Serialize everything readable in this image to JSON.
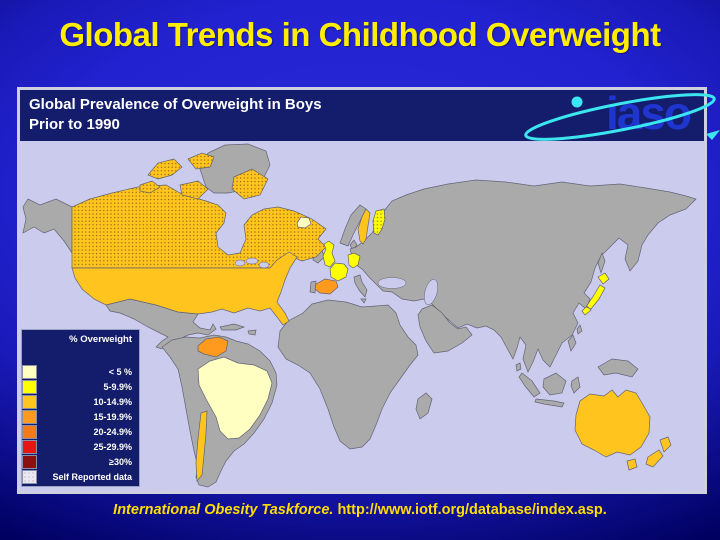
{
  "slide": {
    "title": "Global Trends in Childhood Overweight",
    "footer_source": "International Obesity Taskforce.",
    "footer_url": "http://www.iotf.org/database/index.asp."
  },
  "panel": {
    "header_line1": "Global Prevalence of Overweight in Boys",
    "header_line2": "Prior to 1990",
    "logo_text": "iaso"
  },
  "legend": {
    "title": "% Overweight",
    "items": [
      {
        "label": "< 5 %",
        "color": "#ffffc2"
      },
      {
        "label": "5-9.9%",
        "color": "#ffff00"
      },
      {
        "label": "10-14.9%",
        "color": "#ffc41e"
      },
      {
        "label": "15-19.9%",
        "color": "#ff9a1e"
      },
      {
        "label": "20-24.9%",
        "color": "#f57a1a"
      },
      {
        "label": "25-29.9%",
        "color": "#e81515"
      },
      {
        "label": "≥30%",
        "color": "#8e0f0f"
      },
      {
        "label": "Self Reported data",
        "swatch": "stipple"
      }
    ]
  },
  "palette": {
    "ocean": "#cbcbee",
    "land": "#aaaaaa",
    "lt5": "#ffffc2",
    "p5_9": "#ffff00",
    "p10_14": "#ffc41e",
    "p15_19": "#ff9a1e",
    "p20_24": "#f57a1a",
    "p25_29": "#e81515",
    "gte30": "#8e0f0f",
    "slide_center_blue": "#2222d0",
    "slide_edge_navy": "#000060",
    "title_yellow": "#ffee00",
    "footer_yellow": "#ffdd00",
    "panel_navy": "#141d6b",
    "logo_blue": "#1f35cf",
    "logo_cyan": "#3ce6f0"
  },
  "map_data": {
    "type": "choropleth",
    "title": "Global Prevalence of Overweight in Boys Prior to 1990",
    "classification": [
      {
        "country": "Canada",
        "category": "10-14.9%",
        "self_reported": true
      },
      {
        "country": "United States",
        "category": "10-14.9%"
      },
      {
        "country": "Brazil",
        "category": "< 5 %"
      },
      {
        "country": "Venezuela",
        "category": "15-19.9%"
      },
      {
        "country": "Chile",
        "category": "10-14.9%"
      },
      {
        "country": "Iceland",
        "category": "< 5 %"
      },
      {
        "country": "United Kingdom",
        "category": "5-9.9%"
      },
      {
        "country": "France",
        "category": "5-9.9%"
      },
      {
        "country": "Germany",
        "category": "5-9.9%"
      },
      {
        "country": "Spain",
        "category": "15-19.9%"
      },
      {
        "country": "Sweden",
        "category": "10-14.9%"
      },
      {
        "country": "Finland",
        "category": "5-9.9%",
        "self_reported": true
      },
      {
        "country": "Japan",
        "category": "5-9.9%"
      },
      {
        "country": "Australia",
        "category": "10-14.9%"
      },
      {
        "country": "New Zealand",
        "category": "10-14.9%"
      }
    ],
    "country_fills": {
      "canada": "p10_14",
      "arctic-islands": "p10_14",
      "usa": "p10_14",
      "brazil": "lt5",
      "venezuela": "p15_19",
      "chile": "p10_14",
      "iceland": "lt5",
      "uk": "p5_9",
      "france": "p5_9",
      "germany": "p5_9",
      "spain": "p15_19",
      "sweden": "p10_14",
      "finland": "p5_9",
      "japan": "p5_9",
      "australia": "p10_14",
      "new-zealand": "p10_14"
    }
  }
}
